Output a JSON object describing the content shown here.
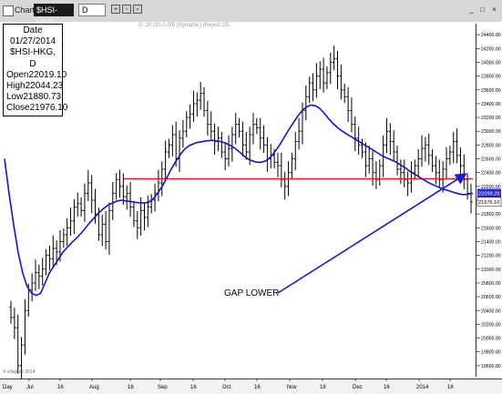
{
  "window": {
    "app_label": "Chart",
    "symbol": "$HSI-HKG",
    "interval": "D",
    "buttons": [
      "+",
      "-",
      "▫"
    ],
    "window_controls": [
      "_",
      "□",
      "×"
    ]
  },
  "info_box": {
    "date": "Date 01/27/2014",
    "symbol": "$HSI-HKG, D",
    "rows": [
      {
        "label": "Open",
        "value": "22019.10"
      },
      {
        "label": "High",
        "value": "22044.23"
      },
      {
        "label": "Low",
        "value": "21880.73"
      },
      {
        "label": "Close",
        "value": "21976.10"
      }
    ]
  },
  "studies_label": "D: 20 (20,0.00) (Dynamic) (Keyed 15)",
  "copyright": "© eSignal, 2014",
  "corner_label": "Day",
  "annotation": "GAP LOWER",
  "colors": {
    "candles": "#000000",
    "moving_average": "#1515c8",
    "support_line": "#e02020",
    "arrow": "#1a1ad0",
    "price_label_bg": "#2a2ad8"
  },
  "chart_data": {
    "type": "candlestick",
    "ylim": [
      19440,
      24560
    ],
    "y_ticks": [
      19600,
      19800,
      20000,
      20200,
      20400,
      20600,
      20800,
      21000,
      21200,
      21400,
      21600,
      21800,
      22000,
      22200,
      22400,
      22600,
      22800,
      23000,
      23200,
      23400,
      23600,
      23800,
      24000,
      24200,
      24400
    ],
    "x_labels": [
      "Jul",
      "16",
      "Aug",
      "16",
      "Sep",
      "16",
      "Oct",
      "16",
      "Nov",
      "18",
      "Dec",
      "16",
      "2014",
      "16"
    ],
    "price_markers": [
      {
        "label": "22099.29",
        "value": 22099
      },
      {
        "label": "21976.10",
        "value": 21976
      }
    ],
    "support_level": 22310,
    "close": [
      20300,
      20150,
      19600,
      19900,
      20400,
      20700,
      20800,
      20950,
      20900,
      21000,
      21200,
      21150,
      21300,
      21250,
      21400,
      21500,
      21600,
      21700,
      21900,
      21950,
      21850,
      22100,
      22250,
      22000,
      21800,
      21500,
      21650,
      21400,
      21850,
      22100,
      22300,
      22200,
      22050,
      22100,
      21900,
      21700,
      21600,
      21850,
      21750,
      21900,
      22000,
      22100,
      22250,
      22450,
      22700,
      22800,
      22950,
      22600,
      22900,
      23000,
      23200,
      23250,
      23400,
      23450,
      23550,
      23300,
      23100,
      23000,
      22850,
      22900,
      22700,
      22600,
      22750,
      22950,
      23100,
      23000,
      22800,
      22700,
      22950,
      23100,
      23050,
      22900,
      22800,
      22600,
      22650,
      22550,
      22500,
      22300,
      22200,
      22400,
      22600,
      22850,
      23000,
      23300,
      23500,
      23700,
      23600,
      23800,
      23900,
      23700,
      23850,
      24000,
      24050,
      23800,
      23600,
      23500,
      23300,
      23100,
      22900,
      22800,
      22700,
      22500,
      22600,
      22400,
      22300,
      22500,
      22800,
      23000,
      22850,
      22700,
      22450,
      22400,
      22300,
      22250,
      22400,
      22500,
      22600,
      22750,
      22800,
      22650,
      22500,
      22400,
      22300,
      22450,
      22600,
      22700,
      22850,
      22650,
      22500,
      22300,
      22100,
      21976
    ],
    "moving_average": [
      22600,
      22100,
      21650,
      21250,
      20950,
      20750,
      20650,
      20620,
      20650,
      20800,
      20950,
      21050,
      21150,
      21250,
      21320,
      21390,
      21450,
      21520,
      21600,
      21680,
      21750,
      21820,
      21880,
      21930,
      21960,
      21990,
      22000,
      21990,
      21980,
      21970,
      21960,
      21960,
      21970,
      22020,
      22100,
      22200,
      22320,
      22450,
      22560,
      22660,
      22740,
      22790,
      22820,
      22840,
      22850,
      22860,
      22870,
      22860,
      22850,
      22830,
      22800,
      22760,
      22710,
      22650,
      22600,
      22570,
      22550,
      22550,
      22570,
      22620,
      22700,
      22790,
      22900,
      23010,
      23110,
      23210,
      23290,
      23350,
      23380,
      23370,
      23330,
      23260,
      23180,
      23110,
      23050,
      23000,
      22960,
      22920,
      22880,
      22840,
      22800,
      22760,
      22720,
      22680,
      22640,
      22610,
      22580,
      22550,
      22510,
      22470,
      22420,
      22380,
      22340,
      22300,
      22260,
      22230,
      22200,
      22170,
      22150,
      22130,
      22110,
      22090,
      22080,
      22090,
      22099
    ]
  }
}
